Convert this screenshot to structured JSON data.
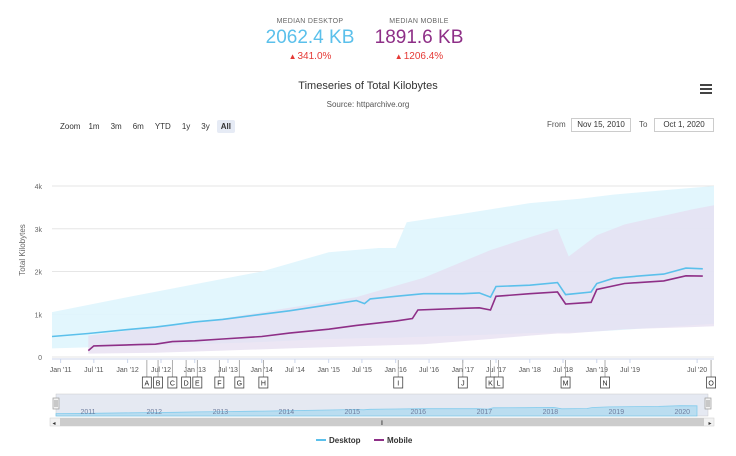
{
  "summary": {
    "desktop": {
      "label": "MEDIAN DESKTOP",
      "value": "2062.4 KB",
      "change": "341.0%",
      "color": "#5bc0eb"
    },
    "mobile": {
      "label": "MEDIAN MOBILE",
      "value": "1891.6 KB",
      "change": "1206.4%",
      "color": "#8e2f87"
    }
  },
  "toolbar": {
    "zoom_label": "Zoom",
    "zoom_options": [
      "1m",
      "3m",
      "6m",
      "YTD",
      "1y",
      "3y",
      "All"
    ],
    "zoom_active": "All",
    "from_label": "From",
    "from_value": "Nov 15, 2010",
    "to_label": "To",
    "to_value": "Oct 1, 2020"
  },
  "icons": {
    "menu": "hamburger-menu-icon",
    "scroll_left": "chevron-left-icon",
    "scroll_right": "chevron-right-icon",
    "scroll_grip": "grip-icon"
  },
  "chart_data": {
    "type": "line",
    "title": "Timeseries of Total Kilobytes",
    "subtitle": "Source: httparchive.org",
    "ylabel": "Total Kilobytes",
    "ylim": [
      0,
      4000
    ],
    "yticks": [
      0,
      1000,
      2000,
      3000,
      4000
    ],
    "ytick_labels": [
      "0",
      "1k",
      "2k",
      "3k",
      "4k"
    ],
    "xlim": [
      "2010-11-15",
      "2020-10-01"
    ],
    "xticks": [
      "2011-01-01",
      "2011-07-01",
      "2012-01-01",
      "2012-07-01",
      "2013-01-01",
      "2013-07-01",
      "2014-01-01",
      "2014-07-01",
      "2015-01-01",
      "2015-07-01",
      "2016-01-01",
      "2016-07-01",
      "2017-01-01",
      "2017-07-01",
      "2018-01-01",
      "2018-07-01",
      "2019-01-01",
      "2019-07-01",
      "2020-07-01"
    ],
    "xtick_labels": [
      "Jan '11",
      "Jul '11",
      "Jan '12",
      "Jul '12",
      "Jan '13",
      "Jul '13",
      "Jan '14",
      "Jul '14",
      "Jan '15",
      "Jul '15",
      "Jan '16",
      "Jul '16",
      "Jan '17",
      "Jul '17",
      "Jan '18",
      "Jul '18",
      "Jan '19",
      "Jul '19",
      "Jul '20"
    ],
    "grid": true,
    "legend": "bottom-center",
    "series": [
      {
        "name": "Desktop",
        "color": "#5bc0eb",
        "band_color": "#dff5fd",
        "points": [
          [
            "2010-11-15",
            480
          ],
          [
            "2011-06-01",
            550
          ],
          [
            "2012-01-01",
            640
          ],
          [
            "2012-06-01",
            700
          ],
          [
            "2012-09-01",
            750
          ],
          [
            "2013-01-01",
            820
          ],
          [
            "2013-06-01",
            880
          ],
          [
            "2014-01-01",
            1000
          ],
          [
            "2014-06-01",
            1080
          ],
          [
            "2015-01-01",
            1220
          ],
          [
            "2015-06-01",
            1320
          ],
          [
            "2015-07-15",
            1250
          ],
          [
            "2015-08-15",
            1360
          ],
          [
            "2016-01-01",
            1420
          ],
          [
            "2016-06-01",
            1480
          ],
          [
            "2017-01-01",
            1480
          ],
          [
            "2017-04-01",
            1500
          ],
          [
            "2017-06-01",
            1400
          ],
          [
            "2017-07-01",
            1650
          ],
          [
            "2018-01-01",
            1680
          ],
          [
            "2018-06-01",
            1740
          ],
          [
            "2018-07-15",
            1460
          ],
          [
            "2018-12-01",
            1520
          ],
          [
            "2019-01-01",
            1720
          ],
          [
            "2019-04-01",
            1840
          ],
          [
            "2019-09-01",
            1900
          ],
          [
            "2020-01-01",
            1940
          ],
          [
            "2020-05-01",
            2080
          ],
          [
            "2020-08-01",
            2062
          ]
        ],
        "band": [
          [
            "2010-11-15",
            200,
            1050
          ],
          [
            "2012-01-01",
            250,
            1400
          ],
          [
            "2013-01-01",
            300,
            1700
          ],
          [
            "2014-01-01",
            350,
            2000
          ],
          [
            "2015-01-01",
            420,
            2450
          ],
          [
            "2015-10-01",
            450,
            2550
          ],
          [
            "2016-01-01",
            450,
            2550
          ],
          [
            "2016-03-01",
            460,
            3150
          ],
          [
            "2017-01-01",
            500,
            3350
          ],
          [
            "2018-01-01",
            560,
            3600
          ],
          [
            "2018-10-01",
            580,
            3700
          ],
          [
            "2019-04-01",
            620,
            3800
          ],
          [
            "2020-01-01",
            700,
            3900
          ],
          [
            "2020-10-01",
            780,
            4000
          ]
        ]
      },
      {
        "name": "Mobile",
        "color": "#8e2f87",
        "band_color": "#e6ddf0",
        "points": [
          [
            "2011-06-01",
            150
          ],
          [
            "2011-07-01",
            260
          ],
          [
            "2012-03-01",
            290
          ],
          [
            "2012-06-01",
            300
          ],
          [
            "2012-09-01",
            360
          ],
          [
            "2013-01-01",
            380
          ],
          [
            "2013-06-01",
            420
          ],
          [
            "2014-01-01",
            480
          ],
          [
            "2014-06-01",
            560
          ],
          [
            "2015-01-01",
            650
          ],
          [
            "2015-06-01",
            740
          ],
          [
            "2016-01-01",
            840
          ],
          [
            "2016-04-01",
            900
          ],
          [
            "2016-05-01",
            1100
          ],
          [
            "2017-01-01",
            1140
          ],
          [
            "2017-04-01",
            1150
          ],
          [
            "2017-06-01",
            1100
          ],
          [
            "2017-07-01",
            1420
          ],
          [
            "2018-01-01",
            1480
          ],
          [
            "2018-06-01",
            1520
          ],
          [
            "2018-07-15",
            1240
          ],
          [
            "2018-12-01",
            1280
          ],
          [
            "2019-01-01",
            1580
          ],
          [
            "2019-06-01",
            1720
          ],
          [
            "2020-01-01",
            1780
          ],
          [
            "2020-05-01",
            1900
          ],
          [
            "2020-08-01",
            1892
          ]
        ],
        "band": [
          [
            "2011-06-01",
            80,
            500
          ],
          [
            "2012-06-01",
            100,
            700
          ],
          [
            "2013-06-01",
            150,
            900
          ],
          [
            "2014-06-01",
            200,
            1150
          ],
          [
            "2015-06-01",
            250,
            1400
          ],
          [
            "2016-06-01",
            300,
            1850
          ],
          [
            "2017-06-01",
            420,
            2500
          ],
          [
            "2018-01-01",
            500,
            2800
          ],
          [
            "2018-06-01",
            550,
            3000
          ],
          [
            "2018-08-01",
            550,
            2350
          ],
          [
            "2019-01-01",
            600,
            2850
          ],
          [
            "2019-06-01",
            650,
            3100
          ],
          [
            "2020-06-01",
            700,
            3450
          ],
          [
            "2020-10-01",
            720,
            3550
          ]
        ]
      }
    ],
    "flags": [
      {
        "label": "A",
        "date": "2012-04-15"
      },
      {
        "label": "B",
        "date": "2012-06-15"
      },
      {
        "label": "C",
        "date": "2012-09-01"
      },
      {
        "label": "D",
        "date": "2012-11-15"
      },
      {
        "label": "E",
        "date": "2013-01-15"
      },
      {
        "label": "F",
        "date": "2013-05-15"
      },
      {
        "label": "G",
        "date": "2013-09-01"
      },
      {
        "label": "H",
        "date": "2014-01-10"
      },
      {
        "label": "I",
        "date": "2016-01-15"
      },
      {
        "label": "J",
        "date": "2017-01-01"
      },
      {
        "label": "K",
        "date": "2017-06-01"
      },
      {
        "label": "L",
        "date": "2017-07-15"
      },
      {
        "label": "M",
        "date": "2018-07-15"
      },
      {
        "label": "N",
        "date": "2019-02-15"
      },
      {
        "label": "O",
        "date": "2020-09-15"
      }
    ],
    "navigator": {
      "labels": [
        "2011",
        "2012",
        "2013",
        "2014",
        "2015",
        "2016",
        "2017",
        "2018",
        "2019",
        "2020"
      ],
      "label_dates": [
        "2011-01-01",
        "2012-01-01",
        "2013-01-01",
        "2014-01-01",
        "2015-01-01",
        "2016-01-01",
        "2017-01-01",
        "2018-01-01",
        "2019-01-01",
        "2020-01-01"
      ]
    }
  }
}
